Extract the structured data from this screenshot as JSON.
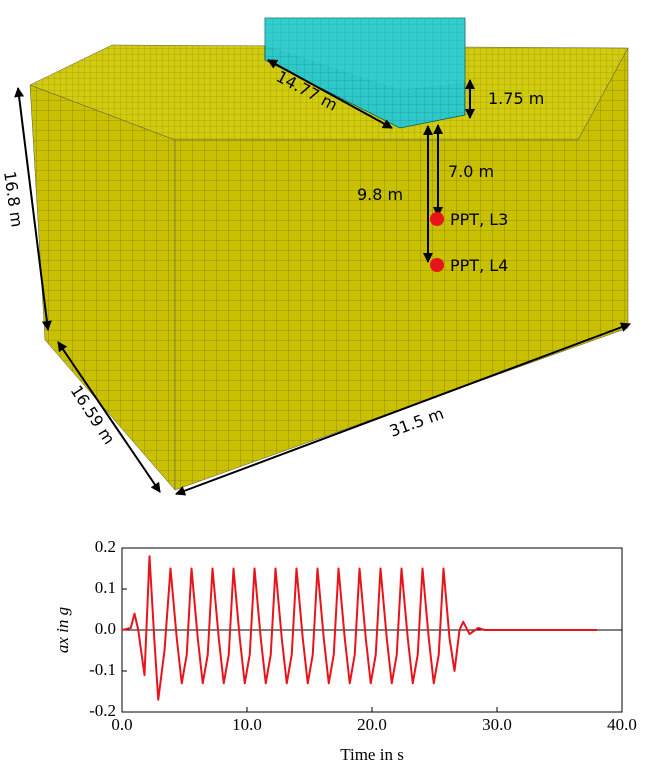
{
  "diagram": {
    "labels": [
      "14.77 m",
      "1.75 m",
      "7.0 m",
      "9.8 m",
      "PPT, L3",
      "PPT, L4",
      "16.8 m",
      "16.59 m",
      "31.5 m"
    ]
  },
  "chart_data": {
    "type": "line",
    "xlabel": "Time in s",
    "ylabel": "ax in g",
    "x": [
      0,
      0.7,
      1.0,
      1.3,
      1.8,
      2.2,
      2.6,
      2.9,
      3.4,
      3.88,
      4.38,
      4.78,
      5.18,
      5.56,
      6.06,
      6.46,
      6.86,
      7.24,
      7.74,
      8.14,
      8.54,
      8.92,
      9.42,
      9.82,
      10.22,
      10.6,
      11.1,
      11.5,
      11.9,
      12.28,
      12.78,
      13.18,
      13.58,
      13.96,
      14.46,
      14.86,
      15.26,
      15.64,
      16.14,
      16.54,
      16.94,
      17.32,
      17.82,
      18.22,
      18.62,
      19.0,
      19.5,
      19.9,
      20.3,
      20.68,
      21.18,
      21.58,
      21.98,
      22.36,
      22.86,
      23.26,
      23.66,
      24.04,
      24.54,
      24.94,
      25.34,
      25.72,
      26.2,
      26.6,
      27.0,
      27.3,
      27.8,
      28.5,
      29.0,
      38.0
    ],
    "series": [
      {
        "color": "#e8141b",
        "values": [
          0,
          0.005,
          0.04,
          0.0,
          -0.11,
          0.18,
          -0.03,
          -0.17,
          -0.05,
          0.15,
          -0.02,
          -0.13,
          -0.06,
          0.15,
          -0.02,
          -0.13,
          -0.06,
          0.15,
          -0.02,
          -0.13,
          -0.06,
          0.15,
          -0.02,
          -0.13,
          -0.06,
          0.15,
          -0.02,
          -0.13,
          -0.06,
          0.15,
          -0.02,
          -0.13,
          -0.06,
          0.15,
          -0.02,
          -0.13,
          -0.06,
          0.15,
          -0.02,
          -0.13,
          -0.06,
          0.15,
          -0.02,
          -0.13,
          -0.06,
          0.15,
          -0.02,
          -0.13,
          -0.06,
          0.15,
          -0.02,
          -0.13,
          -0.06,
          0.15,
          -0.02,
          -0.13,
          -0.06,
          0.15,
          -0.02,
          -0.13,
          -0.06,
          0.15,
          -0.02,
          -0.1,
          0.0,
          0.02,
          -0.01,
          0.005,
          0,
          0
        ]
      }
    ],
    "xlim": [
      0,
      40
    ],
    "xticks": [
      {
        "value": 0,
        "label": "0.0"
      },
      {
        "value": 10,
        "label": "10.0"
      },
      {
        "value": 20,
        "label": "20.0"
      },
      {
        "value": 30,
        "label": "30.0"
      },
      {
        "value": 40,
        "label": "40.0"
      }
    ],
    "ylim": [
      -0.2,
      0.2
    ],
    "yticks": [
      0.2,
      0.1,
      {
        "value": 0,
        "label": "0.0"
      },
      -0.1,
      -0.2
    ]
  }
}
